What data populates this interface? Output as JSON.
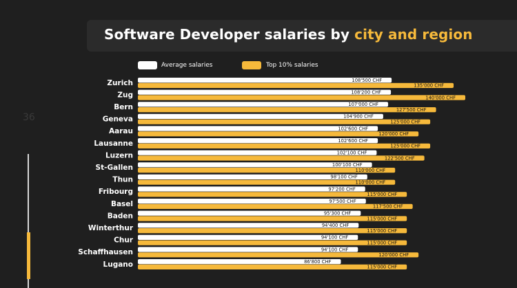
{
  "slide": {
    "page_number": "36",
    "title_main": "Software Developer salaries by ",
    "title_accent": "city and region",
    "accent_color": "#f6b93b",
    "background_color": "#1f1f1f"
  },
  "chart_data": {
    "type": "bar",
    "orientation": "horizontal",
    "title": "Software Developer salaries by city and region",
    "categories": [
      "Zurich",
      "Zug",
      "Bern",
      "Geneva",
      "Aarau",
      "Lausanne",
      "Luzern",
      "St-Gallen",
      "Thun",
      "Fribourg",
      "Basel",
      "Baden",
      "Winterthur",
      "Chur",
      "Schaffhausen",
      "Lugano"
    ],
    "series": [
      {
        "name": "Average salaries",
        "color": "#ffffff",
        "values": [
          108500,
          108200,
          107000,
          104900,
          102600,
          102600,
          102100,
          100100,
          98100,
          97200,
          97500,
          95300,
          94400,
          94100,
          94100,
          86800
        ],
        "labels": [
          "108'500 CHF",
          "108'200 CHF",
          "107'000 CHF",
          "104'900 CHF",
          "102'600 CHF",
          "102'600 CHF",
          "102'100 CHF",
          "100'100 CHF",
          "98'100 CHF",
          "97'200 CHF",
          "97'500 CHF",
          "95'300 CHF",
          "94'400 CHF",
          "94'100 CHF",
          "94'100 CHF",
          "86'800 CHF"
        ]
      },
      {
        "name": "Top 10% salaries",
        "color": "#f6b93b",
        "values": [
          135000,
          140000,
          127500,
          125000,
          120000,
          125000,
          122500,
          110000,
          110000,
          115000,
          117500,
          115000,
          115000,
          115000,
          120000,
          115000
        ],
        "labels": [
          "135'000 CHF",
          "140'000 CHF",
          "127'500 CHF",
          "125'000 CHF",
          "120'000 CHF",
          "125'000 CHF",
          "122'500 CHF",
          "110'000 CHF",
          "110'000 CHF",
          "115'000 CHF",
          "117'500 CHF",
          "115'000 CHF",
          "115'000 CHF",
          "115'000 CHF",
          "120'000 CHF",
          "115'000 CHF"
        ]
      }
    ],
    "xlim": [
      0,
      140000
    ],
    "legend": "top",
    "grid": false,
    "xlabel": "",
    "ylabel": ""
  }
}
